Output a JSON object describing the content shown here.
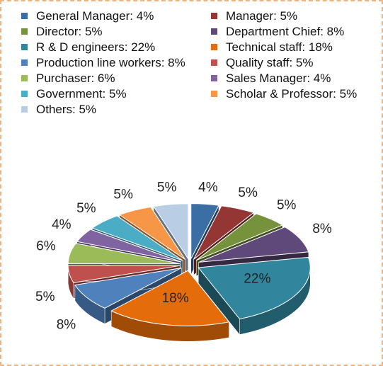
{
  "chart_data": {
    "type": "pie3d",
    "categories": [
      "General Manager: 4%",
      "Manager: 5%",
      "Director: 5%",
      "Department Chief: 8%",
      "R & D engineers: 22%",
      "Technical staff: 18%",
      "Production line workers: 8%",
      "Quality staff: 5%",
      "Purchaser: 6%",
      "Sales Manager: 4%",
      "Government: 5%",
      "Scholar & Professor: 5%",
      "Others: 5%"
    ],
    "values": [
      4,
      5,
      5,
      8,
      22,
      18,
      8,
      5,
      6,
      4,
      5,
      5,
      5
    ],
    "value_labels": [
      "4%",
      "5%",
      "5%",
      "8%",
      "22%",
      "18%",
      "8%",
      "5%",
      "6%",
      "4%",
      "5%",
      "5%",
      "5%"
    ],
    "colors": [
      "#3a6ea5",
      "#943634",
      "#76923c",
      "#5f497a",
      "#31859c",
      "#e46c0a",
      "#4f81bd",
      "#c0504d",
      "#9bbb59",
      "#8064a2",
      "#4bacc6",
      "#f79646",
      "#b9cde5"
    ],
    "legend": "top"
  }
}
